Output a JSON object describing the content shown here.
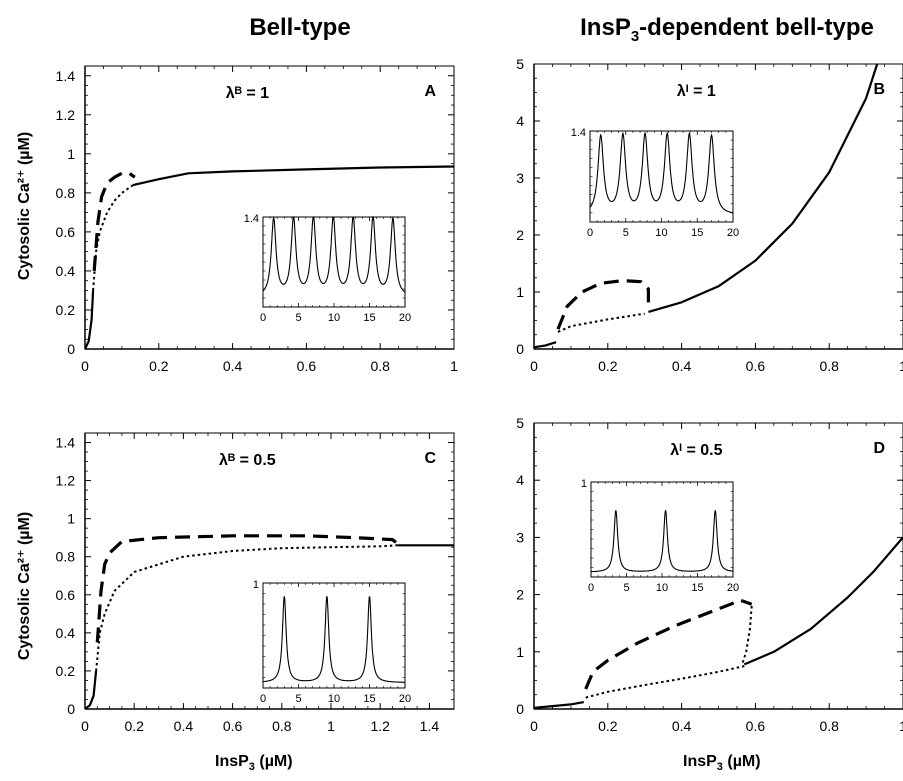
{
  "titles": {
    "left": "Bell-type",
    "right_prefix": "InsP",
    "right_sub": "3",
    "right_suffix": "-dependent bell-type"
  },
  "axis_labels": {
    "ylabel_top": "Cytosolic Ca²⁺ (µM)",
    "ylabel_bottom": "Cytosolic Ca²⁺ (µM)",
    "xlabel_prefix": "InsP",
    "xlabel_sub": "3",
    "xlabel_suffix": " (µM)"
  },
  "chart_data": [
    {
      "panel": "A",
      "type": "line",
      "annotation": "λᴮ = 1",
      "xlim": [
        0,
        1
      ],
      "ylim": [
        0,
        1.45
      ],
      "xticks": [
        0,
        0.2,
        0.4,
        0.6,
        0.8,
        1
      ],
      "xtick_labels": [
        "0",
        "0.2",
        "0.4",
        "0.6",
        "0.8",
        "1"
      ],
      "yticks": [
        0,
        0.2,
        0.4,
        0.6,
        0.8,
        1,
        1.2,
        1.4
      ],
      "ytick_labels": [
        "0",
        "0.2",
        "0.4",
        "0.6",
        "0.8",
        "1",
        "1.2",
        "1.4"
      ],
      "series": [
        {
          "style": "solid",
          "x": [
            0,
            0.01,
            0.018,
            0.022
          ],
          "y": [
            0,
            0.04,
            0.15,
            0.3
          ]
        },
        {
          "style": "dotted",
          "x": [
            0.022,
            0.03,
            0.04,
            0.06,
            0.08,
            0.1,
            0.13
          ],
          "y": [
            0.3,
            0.5,
            0.6,
            0.7,
            0.76,
            0.8,
            0.84
          ]
        },
        {
          "style": "dashed",
          "x": [
            0.025,
            0.035,
            0.045,
            0.06,
            0.08,
            0.1,
            0.12,
            0.135
          ],
          "y": [
            0.4,
            0.65,
            0.78,
            0.85,
            0.88,
            0.9,
            0.9,
            0.88
          ]
        },
        {
          "style": "solid",
          "x": [
            0.13,
            0.2,
            0.28,
            0.4,
            0.6,
            0.8,
            1
          ],
          "y": [
            0.84,
            0.87,
            0.9,
            0.91,
            0.92,
            0.93,
            0.935
          ]
        }
      ],
      "inset": {
        "xlim": [
          0,
          20
        ],
        "ylim": [
          0,
          1.4
        ],
        "xticks": [
          0,
          5,
          10,
          15,
          20
        ],
        "xtick_labels": [
          "0",
          "5",
          "10",
          "15",
          "20"
        ],
        "ytick_label": "1.4",
        "peaks": [
          1.5,
          4.3,
          7.1,
          9.9,
          12.7,
          15.5,
          18.3
        ],
        "peak_height": 1.2,
        "baseline": 0.15,
        "peak_width": 0.7
      }
    },
    {
      "panel": "B",
      "type": "line",
      "annotation": "λᴵ = 1",
      "xlim": [
        0,
        1
      ],
      "ylim": [
        0,
        5
      ],
      "xticks": [
        0,
        0.2,
        0.4,
        0.6,
        0.8,
        1
      ],
      "xtick_labels": [
        "0",
        "0.2",
        "0.4",
        "0.6",
        "0.8",
        "1"
      ],
      "yticks": [
        0,
        1,
        2,
        3,
        4,
        5
      ],
      "ytick_labels": [
        "0",
        "1",
        "2",
        "3",
        "4",
        "5"
      ],
      "series": [
        {
          "style": "solid",
          "x": [
            0,
            0.03,
            0.06
          ],
          "y": [
            0.03,
            0.06,
            0.12
          ]
        },
        {
          "style": "dotted",
          "x": [
            0.065,
            0.1,
            0.15,
            0.2,
            0.25,
            0.3
          ],
          "y": [
            0.3,
            0.4,
            0.46,
            0.52,
            0.57,
            0.62
          ]
        },
        {
          "style": "dashed",
          "x": [
            0.065,
            0.09,
            0.13,
            0.18,
            0.24,
            0.29,
            0.31,
            0.31
          ],
          "y": [
            0.35,
            0.75,
            1.0,
            1.15,
            1.2,
            1.18,
            1.05,
            0.7
          ]
        },
        {
          "style": "solid",
          "x": [
            0.31,
            0.4,
            0.5,
            0.6,
            0.7,
            0.8,
            0.9,
            0.93
          ],
          "y": [
            0.65,
            0.82,
            1.1,
            1.55,
            2.2,
            3.1,
            4.4,
            5.0
          ]
        }
      ],
      "inset": {
        "xlim": [
          0,
          20
        ],
        "ylim": [
          0,
          1.4
        ],
        "xticks": [
          0,
          5,
          10,
          15,
          20
        ],
        "xtick_labels": [
          "0",
          "5",
          "10",
          "15",
          "20"
        ],
        "ytick_label": "1.4",
        "peaks": [
          1.5,
          4.6,
          7.7,
          10.8,
          13.9,
          17.0
        ],
        "peak_height": 1.2,
        "baseline": 0.1,
        "peak_width": 0.8
      }
    },
    {
      "panel": "C",
      "type": "line",
      "annotation": "λᴮ = 0.5",
      "xlim": [
        0,
        1.5
      ],
      "ylim": [
        0,
        1.45
      ],
      "xticks": [
        0,
        0.2,
        0.4,
        0.6,
        0.8,
        1,
        1.2,
        1.4
      ],
      "xtick_labels": [
        "0",
        "0.2",
        "0.4",
        "0.6",
        "0.8",
        "1",
        "1.2",
        "1.4"
      ],
      "yticks": [
        0,
        0.2,
        0.4,
        0.6,
        0.8,
        1,
        1.2,
        1.4
      ],
      "ytick_labels": [
        "0",
        "0.2",
        "0.4",
        "0.6",
        "0.8",
        "1",
        "1.2",
        "1.4"
      ],
      "series": [
        {
          "style": "solid",
          "x": [
            0,
            0.02,
            0.035,
            0.045
          ],
          "y": [
            0,
            0.02,
            0.07,
            0.2
          ]
        },
        {
          "style": "dotted",
          "x": [
            0.045,
            0.06,
            0.08,
            0.12,
            0.2,
            0.4,
            0.6,
            0.8,
            1.0,
            1.2,
            1.27
          ],
          "y": [
            0.2,
            0.4,
            0.5,
            0.62,
            0.72,
            0.8,
            0.83,
            0.845,
            0.85,
            0.855,
            0.86
          ]
        },
        {
          "style": "dashed",
          "x": [
            0.05,
            0.065,
            0.08,
            0.1,
            0.15,
            0.3,
            0.6,
            0.9,
            1.1,
            1.25,
            1.27
          ],
          "y": [
            0.35,
            0.62,
            0.76,
            0.82,
            0.88,
            0.9,
            0.91,
            0.91,
            0.9,
            0.89,
            0.87
          ]
        },
        {
          "style": "solid",
          "x": [
            1.27,
            1.35,
            1.5
          ],
          "y": [
            0.86,
            0.86,
            0.86
          ]
        }
      ],
      "inset": {
        "xlim": [
          0,
          20
        ],
        "ylim": [
          0,
          1
        ],
        "xticks": [
          0,
          5,
          10,
          15,
          20
        ],
        "xtick_labels": [
          "0",
          "5",
          "10",
          "15",
          "20"
        ],
        "ytick_label": "1",
        "peaks": [
          3.0,
          9.0,
          15.0
        ],
        "peak_height": 0.82,
        "baseline": 0.05,
        "peak_width": 0.55
      }
    },
    {
      "panel": "D",
      "type": "line",
      "annotation": "λᴵ = 0.5",
      "xlim": [
        0,
        1
      ],
      "ylim": [
        0,
        5
      ],
      "xticks": [
        0,
        0.2,
        0.4,
        0.6,
        0.8,
        1
      ],
      "xtick_labels": [
        "0",
        "0.2",
        "0.4",
        "0.6",
        "0.8",
        "1"
      ],
      "yticks": [
        0,
        1,
        2,
        3,
        4,
        5
      ],
      "ytick_labels": [
        "0",
        "1",
        "2",
        "3",
        "4",
        "5"
      ],
      "series": [
        {
          "style": "solid",
          "x": [
            0,
            0.05,
            0.1,
            0.135
          ],
          "y": [
            0.02,
            0.05,
            0.08,
            0.12
          ]
        },
        {
          "style": "dotted",
          "x": [
            0.14,
            0.2,
            0.3,
            0.4,
            0.5,
            0.57
          ],
          "y": [
            0.2,
            0.3,
            0.42,
            0.53,
            0.65,
            0.75
          ]
        },
        {
          "style": "dashed",
          "x": [
            0.14,
            0.16,
            0.2,
            0.28,
            0.38,
            0.48,
            0.56,
            0.59
          ],
          "y": [
            0.35,
            0.65,
            0.85,
            1.15,
            1.45,
            1.7,
            1.9,
            1.83
          ]
        },
        {
          "style": "dotted",
          "x": [
            0.59,
            0.585,
            0.575,
            0.565
          ],
          "y": [
            1.8,
            1.4,
            1.0,
            0.8
          ]
        },
        {
          "style": "solid",
          "x": [
            0.57,
            0.65,
            0.75,
            0.85,
            0.92,
            1.0
          ],
          "y": [
            0.78,
            1.0,
            1.4,
            1.95,
            2.4,
            3.0
          ]
        }
      ],
      "inset": {
        "xlim": [
          0,
          20
        ],
        "ylim": [
          0,
          1
        ],
        "xticks": [
          0,
          5,
          10,
          15,
          20
        ],
        "xtick_labels": [
          "0",
          "5",
          "10",
          "15",
          "20"
        ],
        "ytick_label": "1",
        "peaks": [
          3.5,
          10.5,
          17.5
        ],
        "peak_height": 0.65,
        "baseline": 0.05,
        "peak_width": 0.55
      }
    }
  ]
}
